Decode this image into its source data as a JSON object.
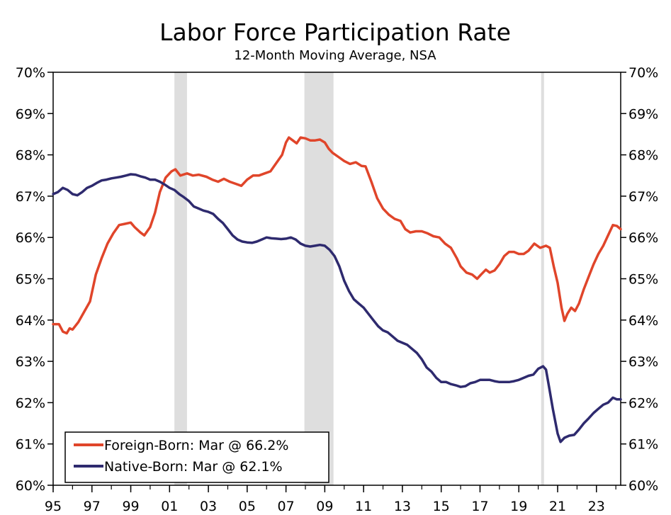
{
  "chart_data": {
    "type": "line",
    "title": "Labor Force Participation Rate",
    "subtitle": "12-Month Moving Average, NSA",
    "xlabel": "",
    "ylabel": "",
    "xlim": [
      1995.0,
      2024.25
    ],
    "ylim": [
      60,
      70
    ],
    "y_ticks": [
      60,
      61,
      62,
      63,
      64,
      65,
      66,
      67,
      68,
      69,
      70
    ],
    "y_tick_labels": [
      "60%",
      "61%",
      "62%",
      "63%",
      "64%",
      "65%",
      "66%",
      "67%",
      "68%",
      "69%",
      "70%"
    ],
    "x_ticks": [
      1995,
      1997,
      1999,
      2001,
      2003,
      2005,
      2007,
      2009,
      2011,
      2013,
      2015,
      2017,
      2019,
      2021,
      2023
    ],
    "x_tick_labels": [
      "95",
      "97",
      "99",
      "01",
      "03",
      "05",
      "07",
      "09",
      "11",
      "13",
      "15",
      "17",
      "19",
      "21",
      "23"
    ],
    "grid": false,
    "legend_position": "bottom-left",
    "recessions": [
      {
        "start": 2001.25,
        "end": 2001.9
      },
      {
        "start": 2007.95,
        "end": 2009.45
      },
      {
        "start": 2020.15,
        "end": 2020.3
      }
    ],
    "series": [
      {
        "name": "Foreign-Born: Mar @ 66.2%",
        "color": "#e0452a",
        "points": [
          [
            1995.0,
            63.9
          ],
          [
            1995.3,
            63.9
          ],
          [
            1995.5,
            63.72
          ],
          [
            1995.7,
            63.68
          ],
          [
            1995.85,
            63.8
          ],
          [
            1996.0,
            63.77
          ],
          [
            1996.3,
            63.95
          ],
          [
            1996.6,
            64.2
          ],
          [
            1996.9,
            64.45
          ],
          [
            1997.2,
            65.1
          ],
          [
            1997.5,
            65.5
          ],
          [
            1997.8,
            65.85
          ],
          [
            1998.1,
            66.1
          ],
          [
            1998.4,
            66.3
          ],
          [
            1998.7,
            66.33
          ],
          [
            1999.0,
            66.36
          ],
          [
            1999.2,
            66.25
          ],
          [
            1999.5,
            66.12
          ],
          [
            1999.7,
            66.05
          ],
          [
            2000.0,
            66.25
          ],
          [
            2000.25,
            66.6
          ],
          [
            2000.5,
            67.1
          ],
          [
            2000.8,
            67.45
          ],
          [
            2001.1,
            67.6
          ],
          [
            2001.3,
            67.65
          ],
          [
            2001.55,
            67.5
          ],
          [
            2001.9,
            67.55
          ],
          [
            2002.2,
            67.5
          ],
          [
            2002.5,
            67.52
          ],
          [
            2002.9,
            67.47
          ],
          [
            2003.2,
            67.4
          ],
          [
            2003.5,
            67.35
          ],
          [
            2003.8,
            67.42
          ],
          [
            2004.1,
            67.35
          ],
          [
            2004.4,
            67.3
          ],
          [
            2004.7,
            67.25
          ],
          [
            2005.0,
            67.4
          ],
          [
            2005.3,
            67.5
          ],
          [
            2005.6,
            67.5
          ],
          [
            2005.9,
            67.55
          ],
          [
            2006.2,
            67.6
          ],
          [
            2006.5,
            67.8
          ],
          [
            2006.8,
            68.0
          ],
          [
            2007.0,
            68.3
          ],
          [
            2007.15,
            68.42
          ],
          [
            2007.35,
            68.35
          ],
          [
            2007.55,
            68.28
          ],
          [
            2007.75,
            68.42
          ],
          [
            2008.0,
            68.4
          ],
          [
            2008.25,
            68.35
          ],
          [
            2008.5,
            68.35
          ],
          [
            2008.75,
            68.37
          ],
          [
            2009.0,
            68.3
          ],
          [
            2009.2,
            68.15
          ],
          [
            2009.4,
            68.05
          ],
          [
            2009.7,
            67.95
          ],
          [
            2010.0,
            67.85
          ],
          [
            2010.3,
            67.78
          ],
          [
            2010.6,
            67.82
          ],
          [
            2010.9,
            67.73
          ],
          [
            2011.1,
            67.72
          ],
          [
            2011.4,
            67.35
          ],
          [
            2011.7,
            66.95
          ],
          [
            2012.0,
            66.7
          ],
          [
            2012.3,
            66.55
          ],
          [
            2012.6,
            66.45
          ],
          [
            2012.9,
            66.4
          ],
          [
            2013.15,
            66.2
          ],
          [
            2013.4,
            66.12
          ],
          [
            2013.7,
            66.15
          ],
          [
            2014.0,
            66.15
          ],
          [
            2014.3,
            66.1
          ],
          [
            2014.6,
            66.03
          ],
          [
            2014.9,
            66.0
          ],
          [
            2015.2,
            65.85
          ],
          [
            2015.5,
            65.75
          ],
          [
            2015.8,
            65.5
          ],
          [
            2016.0,
            65.3
          ],
          [
            2016.3,
            65.15
          ],
          [
            2016.6,
            65.1
          ],
          [
            2016.85,
            65.0
          ],
          [
            2017.05,
            65.1
          ],
          [
            2017.3,
            65.22
          ],
          [
            2017.5,
            65.15
          ],
          [
            2017.75,
            65.2
          ],
          [
            2018.0,
            65.35
          ],
          [
            2018.25,
            65.55
          ],
          [
            2018.5,
            65.65
          ],
          [
            2018.75,
            65.65
          ],
          [
            2019.0,
            65.6
          ],
          [
            2019.25,
            65.6
          ],
          [
            2019.5,
            65.68
          ],
          [
            2019.8,
            65.85
          ],
          [
            2020.1,
            65.75
          ],
          [
            2020.4,
            65.8
          ],
          [
            2020.6,
            65.75
          ],
          [
            2020.8,
            65.3
          ],
          [
            2021.0,
            64.9
          ],
          [
            2021.2,
            64.3
          ],
          [
            2021.35,
            63.98
          ],
          [
            2021.5,
            64.15
          ],
          [
            2021.7,
            64.3
          ],
          [
            2021.9,
            64.22
          ],
          [
            2022.1,
            64.4
          ],
          [
            2022.35,
            64.75
          ],
          [
            2022.6,
            65.05
          ],
          [
            2022.85,
            65.35
          ],
          [
            2023.1,
            65.6
          ],
          [
            2023.35,
            65.8
          ],
          [
            2023.6,
            66.05
          ],
          [
            2023.85,
            66.3
          ],
          [
            2024.05,
            66.28
          ],
          [
            2024.25,
            66.2
          ]
        ]
      },
      {
        "name": "Native-Born: Mar @ 62.1%",
        "color": "#2e2a6e",
        "points": [
          [
            1995.0,
            67.05
          ],
          [
            1995.25,
            67.1
          ],
          [
            1995.5,
            67.2
          ],
          [
            1995.75,
            67.15
          ],
          [
            1996.0,
            67.05
          ],
          [
            1996.25,
            67.02
          ],
          [
            1996.5,
            67.1
          ],
          [
            1996.75,
            67.2
          ],
          [
            1997.0,
            67.25
          ],
          [
            1997.25,
            67.32
          ],
          [
            1997.5,
            67.38
          ],
          [
            1997.75,
            67.4
          ],
          [
            1998.0,
            67.43
          ],
          [
            1998.25,
            67.45
          ],
          [
            1998.5,
            67.47
          ],
          [
            1998.75,
            67.5
          ],
          [
            1999.0,
            67.53
          ],
          [
            1999.25,
            67.52
          ],
          [
            1999.5,
            67.48
          ],
          [
            1999.75,
            67.45
          ],
          [
            2000.0,
            67.4
          ],
          [
            2000.25,
            67.4
          ],
          [
            2000.5,
            67.35
          ],
          [
            2000.75,
            67.28
          ],
          [
            2001.0,
            67.2
          ],
          [
            2001.25,
            67.15
          ],
          [
            2001.5,
            67.05
          ],
          [
            2001.75,
            66.97
          ],
          [
            2002.0,
            66.88
          ],
          [
            2002.25,
            66.75
          ],
          [
            2002.5,
            66.7
          ],
          [
            2002.75,
            66.65
          ],
          [
            2003.0,
            66.62
          ],
          [
            2003.25,
            66.57
          ],
          [
            2003.5,
            66.45
          ],
          [
            2003.75,
            66.35
          ],
          [
            2004.0,
            66.2
          ],
          [
            2004.25,
            66.05
          ],
          [
            2004.5,
            65.95
          ],
          [
            2004.75,
            65.9
          ],
          [
            2005.0,
            65.88
          ],
          [
            2005.25,
            65.87
          ],
          [
            2005.5,
            65.9
          ],
          [
            2005.75,
            65.95
          ],
          [
            2006.0,
            66.0
          ],
          [
            2006.25,
            65.98
          ],
          [
            2006.5,
            65.97
          ],
          [
            2006.75,
            65.96
          ],
          [
            2007.0,
            65.97
          ],
          [
            2007.25,
            66.0
          ],
          [
            2007.5,
            65.95
          ],
          [
            2007.75,
            65.85
          ],
          [
            2008.0,
            65.8
          ],
          [
            2008.25,
            65.78
          ],
          [
            2008.5,
            65.8
          ],
          [
            2008.75,
            65.82
          ],
          [
            2009.0,
            65.8
          ],
          [
            2009.25,
            65.7
          ],
          [
            2009.5,
            65.55
          ],
          [
            2009.75,
            65.3
          ],
          [
            2010.0,
            64.95
          ],
          [
            2010.25,
            64.7
          ],
          [
            2010.5,
            64.5
          ],
          [
            2010.75,
            64.4
          ],
          [
            2011.0,
            64.3
          ],
          [
            2011.25,
            64.15
          ],
          [
            2011.5,
            64.0
          ],
          [
            2011.75,
            63.85
          ],
          [
            2012.0,
            63.75
          ],
          [
            2012.25,
            63.7
          ],
          [
            2012.5,
            63.6
          ],
          [
            2012.75,
            63.5
          ],
          [
            2013.0,
            63.45
          ],
          [
            2013.25,
            63.4
          ],
          [
            2013.5,
            63.3
          ],
          [
            2013.75,
            63.2
          ],
          [
            2014.0,
            63.05
          ],
          [
            2014.25,
            62.85
          ],
          [
            2014.5,
            62.75
          ],
          [
            2014.75,
            62.6
          ],
          [
            2015.0,
            62.5
          ],
          [
            2015.25,
            62.5
          ],
          [
            2015.5,
            62.45
          ],
          [
            2015.75,
            62.42
          ],
          [
            2016.0,
            62.38
          ],
          [
            2016.25,
            62.4
          ],
          [
            2016.5,
            62.47
          ],
          [
            2016.75,
            62.5
          ],
          [
            2017.0,
            62.55
          ],
          [
            2017.25,
            62.55
          ],
          [
            2017.5,
            62.55
          ],
          [
            2017.75,
            62.52
          ],
          [
            2018.0,
            62.5
          ],
          [
            2018.25,
            62.5
          ],
          [
            2018.5,
            62.5
          ],
          [
            2018.75,
            62.52
          ],
          [
            2019.0,
            62.55
          ],
          [
            2019.25,
            62.6
          ],
          [
            2019.5,
            62.65
          ],
          [
            2019.75,
            62.68
          ],
          [
            2020.0,
            62.82
          ],
          [
            2020.25,
            62.88
          ],
          [
            2020.4,
            62.8
          ],
          [
            2020.55,
            62.4
          ],
          [
            2020.75,
            61.85
          ],
          [
            2021.0,
            61.25
          ],
          [
            2021.15,
            61.05
          ],
          [
            2021.35,
            61.15
          ],
          [
            2021.6,
            61.2
          ],
          [
            2021.85,
            61.22
          ],
          [
            2022.1,
            61.35
          ],
          [
            2022.35,
            61.5
          ],
          [
            2022.6,
            61.62
          ],
          [
            2022.85,
            61.75
          ],
          [
            2023.1,
            61.85
          ],
          [
            2023.35,
            61.95
          ],
          [
            2023.6,
            62.0
          ],
          [
            2023.85,
            62.12
          ],
          [
            2024.05,
            62.08
          ],
          [
            2024.25,
            62.08
          ]
        ]
      }
    ]
  }
}
